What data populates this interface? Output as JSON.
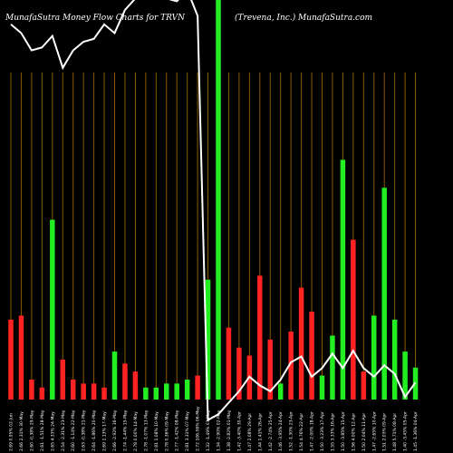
{
  "header": {
    "left": "MunafaSutra  Money Flow  Charts for TRVN",
    "right": "(Trevena,  Inc.) MunafaSutra.com"
  },
  "colors": {
    "background": "#000000",
    "grid": "#8B5A00",
    "up": "#22ee22",
    "down": "#ff2222",
    "price_line": "#ffffff"
  },
  "chart_data": {
    "type": "bar",
    "title": "MunafaSutra  Money Flow  Charts for TRVN",
    "xlabel": "",
    "ylabel": "",
    "grid": true,
    "ylim": [
      0,
      100
    ],
    "categories": [
      "2.69 0.95% 02-Jun",
      "2.66 2.31% 30-May",
      "2.60 -0.38% 29-May",
      "2.61 -1.51% 28-May",
      "2.65 4.33% 24-May",
      "2.54 -2.31% 23-May",
      "2.60 -1.14% 22-May",
      "2.63 -0.38% 21-May",
      "2.64 -1.86% 20-May",
      "2.69 1.13% 17-May",
      "2.66 -2.92% 16-May",
      "2.74 -1.44% 15-May",
      "2.78 0.00% 14-May",
      "2.78 -1.07% 13-May",
      "2.81 1.08% 10-May",
      "2.78 0.36% 09-May",
      "2.77 -1.42% 08-May",
      "2.81 3.31% 07-May",
      "2.72 106.06% 06-May",
      "1.32 -1.49% 03-May",
      "1.34 -2.90% 02-May",
      "1.38 -2.82% 01-May",
      "1.42 -3.40% 30-Apr",
      "1.47 2.08% 29-Apr",
      "1.44 1.41% 26-Apr",
      "1.42 -2.74% 25-Apr",
      "1.46 -3.95% 24-Apr",
      "1.52 -1.30% 23-Apr",
      "1.54 4.76% 22-Apr",
      "1.47 -2.00% 18-Apr",
      "1.50 -3.23% 17-Apr",
      "1.55 3.33% 16-Apr",
      "1.50 -3.85% 15-Apr",
      "1.56 4.00% 12-Apr",
      "1.50 2.04% 11-Apr",
      "1.47 -2.65% 10-Apr",
      "1.51 2.03% 09-Apr",
      "1.48 5.71% 08-Apr",
      "1.40 -3.45% 05-Apr",
      "1.45 -1.36% 04-Apr"
    ],
    "series": [
      {
        "values": [
          20,
          21,
          5,
          3,
          45,
          10,
          5,
          4,
          4,
          3,
          12,
          9,
          7,
          3,
          3,
          4,
          4,
          5,
          6,
          30,
          100,
          18,
          13,
          11,
          31,
          15,
          4,
          17,
          28,
          22,
          6,
          16,
          60,
          40,
          7,
          21,
          53,
          20,
          12,
          8
        ]
      }
    ],
    "direction": [
      "down",
      "down",
      "down",
      "down",
      "up",
      "down",
      "down",
      "down",
      "down",
      "down",
      "up",
      "down",
      "down",
      "up",
      "up",
      "up",
      "up",
      "up",
      "down",
      "up",
      "up",
      "down",
      "down",
      "down",
      "down",
      "down",
      "up",
      "down",
      "down",
      "down",
      "up",
      "up",
      "up",
      "down",
      "down",
      "up",
      "up",
      "up",
      "up",
      "up"
    ]
  }
}
